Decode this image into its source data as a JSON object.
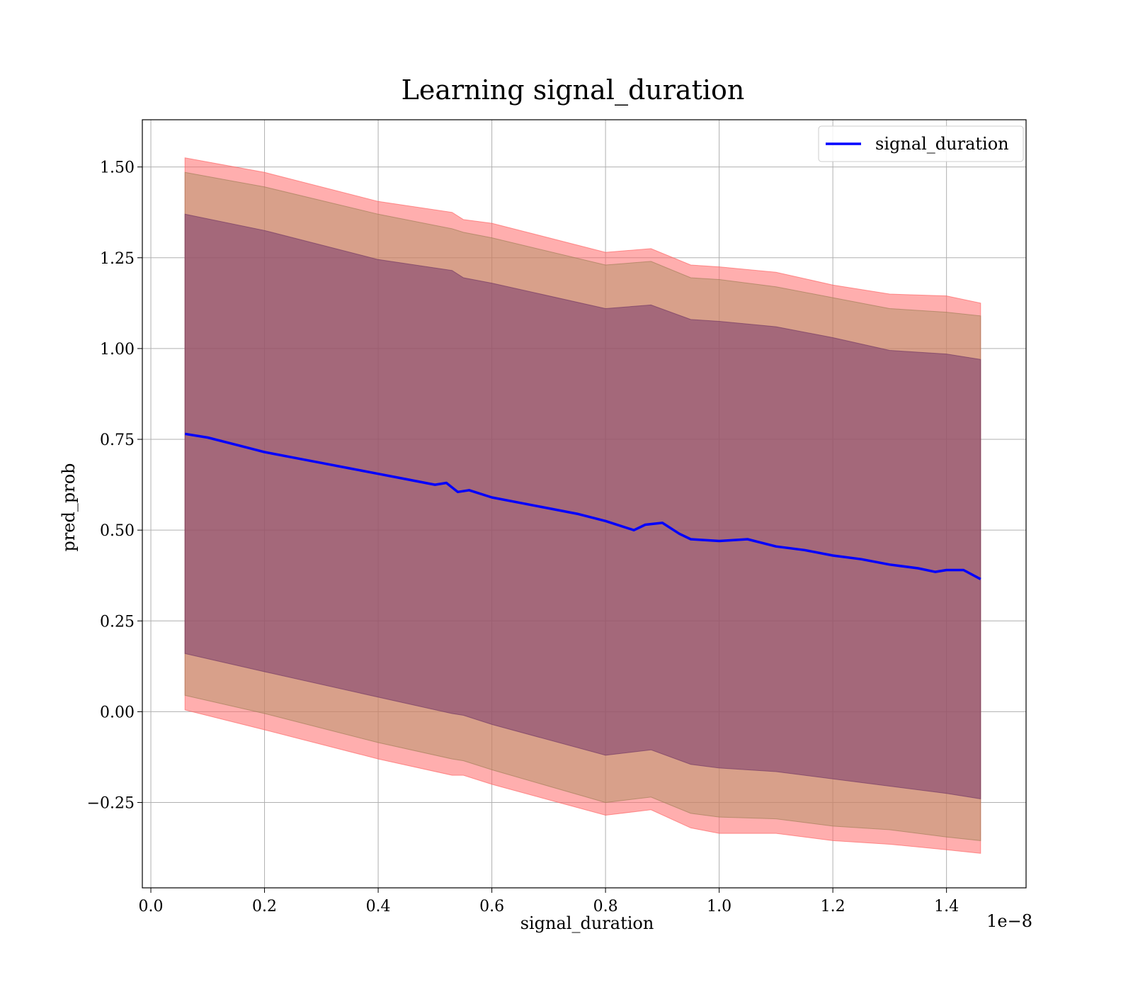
{
  "chart_data": {
    "type": "line",
    "title": "Learning signal_duration",
    "xlabel": "signal_duration",
    "ylabel": "pred_prob",
    "x_offset_text": "1e−8",
    "xlim": [
      -0.015,
      1.54
    ],
    "ylim": [
      -0.485,
      1.63
    ],
    "xticks": [
      0.0,
      0.2,
      0.4,
      0.6,
      0.8,
      1.0,
      1.2,
      1.4
    ],
    "xtick_labels": [
      "0.0",
      "0.2",
      "0.4",
      "0.6",
      "0.8",
      "1.0",
      "1.2",
      "1.4"
    ],
    "yticks": [
      -0.25,
      0.0,
      0.25,
      0.5,
      0.75,
      1.0,
      1.25,
      1.5
    ],
    "ytick_labels": [
      "−0.25",
      "0.00",
      "0.25",
      "0.50",
      "0.75",
      "1.00",
      "1.25",
      "1.50"
    ],
    "grid": true,
    "legend": {
      "position": "top-right",
      "entries": [
        "signal_duration"
      ]
    },
    "colors": {
      "line": "#0000ff",
      "outer_band": "#ff6b6b",
      "middle_band": "#a89060",
      "inner_band": "#7a3a6e"
    },
    "series": [
      {
        "name": "signal_duration",
        "x": [
          0.06,
          0.1,
          0.15,
          0.2,
          0.25,
          0.3,
          0.35,
          0.4,
          0.45,
          0.5,
          0.52,
          0.54,
          0.56,
          0.6,
          0.65,
          0.7,
          0.75,
          0.8,
          0.85,
          0.87,
          0.9,
          0.93,
          0.95,
          1.0,
          1.05,
          1.1,
          1.15,
          1.2,
          1.25,
          1.3,
          1.35,
          1.38,
          1.4,
          1.43,
          1.46
        ],
        "y": [
          0.765,
          0.755,
          0.735,
          0.715,
          0.7,
          0.685,
          0.67,
          0.655,
          0.64,
          0.625,
          0.63,
          0.605,
          0.61,
          0.59,
          0.575,
          0.56,
          0.545,
          0.525,
          0.5,
          0.515,
          0.52,
          0.49,
          0.475,
          0.47,
          0.475,
          0.455,
          0.445,
          0.43,
          0.42,
          0.405,
          0.395,
          0.385,
          0.39,
          0.39,
          0.365
        ]
      }
    ],
    "bands": [
      {
        "name": "outer",
        "x": [
          0.06,
          0.2,
          0.4,
          0.53,
          0.55,
          0.6,
          0.8,
          0.88,
          0.95,
          1.0,
          1.1,
          1.2,
          1.3,
          1.4,
          1.46
        ],
        "upper": [
          1.525,
          1.485,
          1.405,
          1.375,
          1.355,
          1.345,
          1.265,
          1.275,
          1.23,
          1.225,
          1.21,
          1.175,
          1.15,
          1.145,
          1.125
        ],
        "lower": [
          0.005,
          -0.05,
          -0.13,
          -0.175,
          -0.175,
          -0.2,
          -0.285,
          -0.27,
          -0.32,
          -0.335,
          -0.335,
          -0.355,
          -0.365,
          -0.38,
          -0.39
        ]
      },
      {
        "name": "middle",
        "x": [
          0.06,
          0.2,
          0.4,
          0.53,
          0.55,
          0.6,
          0.8,
          0.88,
          0.95,
          1.0,
          1.1,
          1.2,
          1.3,
          1.4,
          1.46
        ],
        "upper": [
          1.485,
          1.445,
          1.37,
          1.33,
          1.32,
          1.305,
          1.23,
          1.24,
          1.195,
          1.19,
          1.17,
          1.14,
          1.11,
          1.1,
          1.09
        ],
        "lower": [
          0.045,
          -0.005,
          -0.085,
          -0.13,
          -0.135,
          -0.16,
          -0.25,
          -0.235,
          -0.28,
          -0.29,
          -0.295,
          -0.315,
          -0.325,
          -0.345,
          -0.355
        ]
      },
      {
        "name": "inner",
        "x": [
          0.06,
          0.2,
          0.4,
          0.53,
          0.55,
          0.6,
          0.8,
          0.88,
          0.95,
          1.0,
          1.1,
          1.2,
          1.3,
          1.4,
          1.46
        ],
        "upper": [
          1.37,
          1.325,
          1.245,
          1.215,
          1.195,
          1.18,
          1.11,
          1.12,
          1.08,
          1.075,
          1.06,
          1.03,
          0.995,
          0.985,
          0.97
        ],
        "lower": [
          0.16,
          0.11,
          0.04,
          -0.005,
          -0.01,
          -0.035,
          -0.12,
          -0.105,
          -0.145,
          -0.155,
          -0.165,
          -0.185,
          -0.205,
          -0.225,
          -0.24
        ]
      }
    ]
  }
}
